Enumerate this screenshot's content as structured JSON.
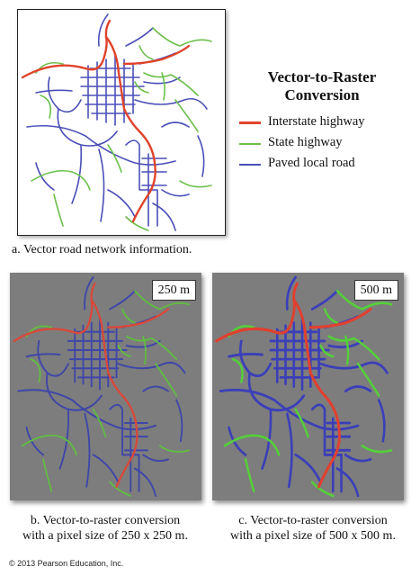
{
  "legend": {
    "title_line1": "Vector-to-Raster",
    "title_line2": "Conversion",
    "items": [
      {
        "label": "Interstate highway",
        "color": "#e0432a"
      },
      {
        "label": "State highway",
        "color": "#6cc04a"
      },
      {
        "label": "Paved local road",
        "color": "#4b4fb8"
      }
    ]
  },
  "panel_a": {
    "caption": "a. Vector road network information."
  },
  "panel_b": {
    "scale": "250 m",
    "caption_line1": "b. Vector-to-raster conversion",
    "caption_line2": "with a pixel size of 250 x 250 m."
  },
  "panel_c": {
    "scale": "500 m",
    "caption_line1": "c. Vector-to-raster conversion",
    "caption_line2": "with a pixel size of 500 x 500 m."
  },
  "copyright": "© 2013 Pearson Education, Inc.",
  "colors": {
    "raster_background": "#7d7d7d",
    "interstate": "#e0432a",
    "state": "#6cc04a",
    "local": "#4b4fb8"
  }
}
